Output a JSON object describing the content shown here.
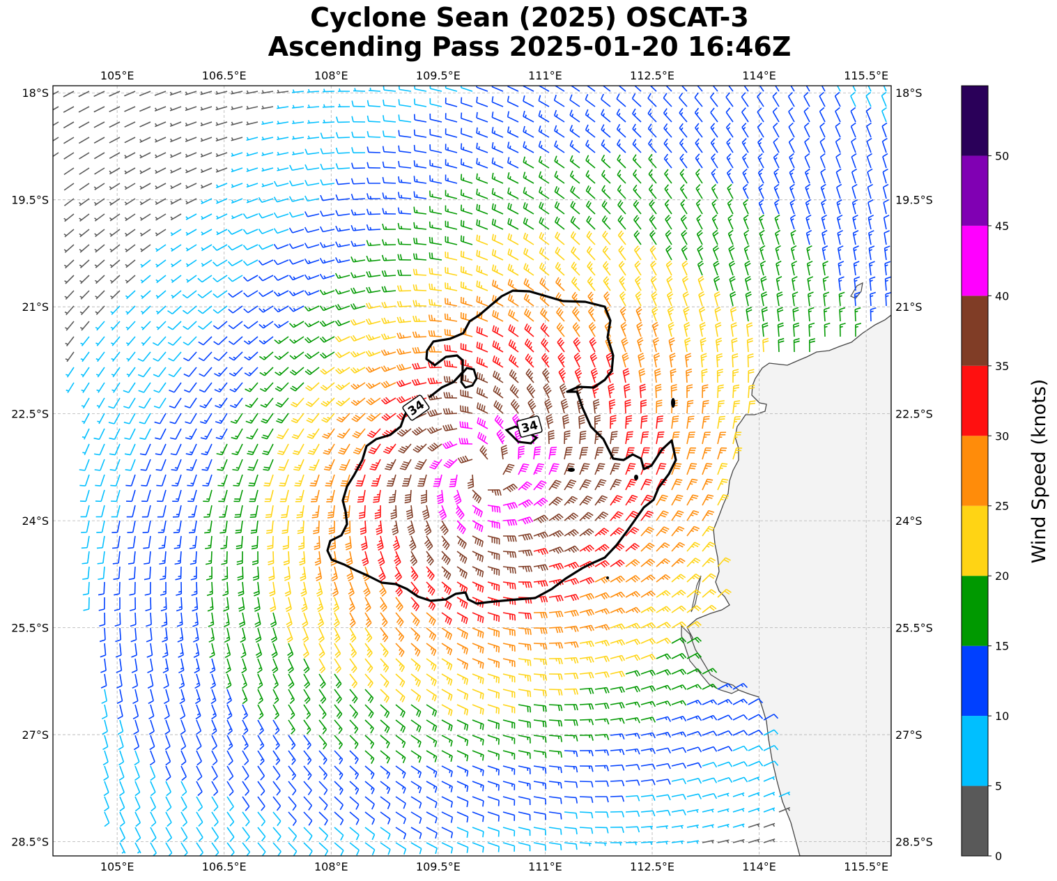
{
  "title": {
    "line1": "Cyclone Sean (2025) OSCAT-3",
    "line2": "Ascending Pass 2025-01-20 16:46Z"
  },
  "map": {
    "lon_range": [
      104.1,
      115.85
    ],
    "lat_range": [
      -28.7,
      -17.9
    ],
    "top_ticks": [
      "105°E",
      "106.5°E",
      "108°E",
      "109.5°E",
      "111°E",
      "112.5°E",
      "114°E",
      "115.5°E"
    ],
    "bottom_ticks": [
      "105°E",
      "106.5°E",
      "108°E",
      "109.5°E",
      "111°E",
      "112.5°E",
      "114°E",
      "115.5°E"
    ],
    "left_ticks": [
      "18°S",
      "19.5°S",
      "21°S",
      "22.5°S",
      "24°S",
      "25.5°S",
      "27°S",
      "28.5°S"
    ],
    "right_ticks": [
      "18°S",
      "19.5°S",
      "21°S",
      "22.5°S",
      "24°S",
      "25.5°S",
      "27°S",
      "28.5°S"
    ],
    "gridlines": true,
    "land_color": "#f3f3f3",
    "coast_color": "#444444",
    "cyclone_center": {
      "lon": 110.1,
      "lat": -23.3
    },
    "contour": {
      "level_label": "34",
      "label_1": "34",
      "label_2": "34",
      "color": "#000000"
    },
    "barb_field": {
      "description": "wind barbs coloured by speed, cyclonic (clockwise) circulation",
      "units": "knots"
    }
  },
  "colorbar": {
    "label": "Wind Speed (knots)",
    "ticks": [
      "0",
      "5",
      "10",
      "15",
      "20",
      "25",
      "30",
      "35",
      "40",
      "45",
      "50"
    ],
    "bins": [
      {
        "from": 0,
        "to": 5,
        "color": "#595959"
      },
      {
        "from": 5,
        "to": 10,
        "color": "#00bfff"
      },
      {
        "from": 10,
        "to": 15,
        "color": "#0040ff"
      },
      {
        "from": 15,
        "to": 20,
        "color": "#009900"
      },
      {
        "from": 20,
        "to": 25,
        "color": "#ffd414"
      },
      {
        "from": 25,
        "to": 30,
        "color": "#ff8c0a"
      },
      {
        "from": 30,
        "to": 35,
        "color": "#ff1010"
      },
      {
        "from": 35,
        "to": 40,
        "color": "#803d26"
      },
      {
        "from": 40,
        "to": 45,
        "color": "#ff00ff"
      },
      {
        "from": 45,
        "to": 50,
        "color": "#8000b3"
      },
      {
        "from": 50,
        "to": 55,
        "color": "#2a0059"
      }
    ]
  }
}
